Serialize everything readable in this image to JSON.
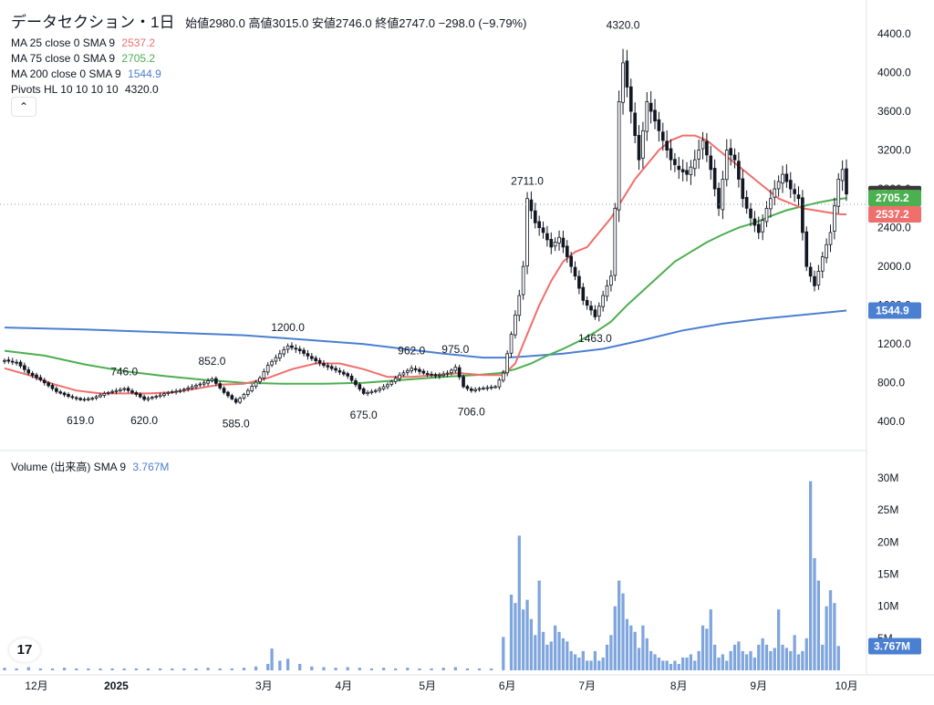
{
  "header": {
    "symbol": "データセクション・1日",
    "ohlc": "始値2980.0 高値3015.0 安値2746.0 終値2747.0 −298.0 (−9.79%)"
  },
  "legend": [
    {
      "label": "MA 25 close 0 SMA 9",
      "value": "2537.2",
      "color": "#ef6f6c"
    },
    {
      "label": "MA 75 close 0 SMA 9",
      "value": "2705.2",
      "color": "#4caf50"
    },
    {
      "label": "MA 200 close 0 SMA 9",
      "value": "1544.9",
      "color": "#4a7fd1"
    },
    {
      "label": "Pivots HL 10 10 10 10",
      "value": "4320.0",
      "color": "#131722"
    }
  ],
  "volume_legend": {
    "label": "Volume (出来高) SMA 9",
    "value": "3.767M",
    "color": "#4a7fd1"
  },
  "collapse_icon": "chevron-up-icon",
  "logo_text": "17",
  "chart_data": {
    "type": "candlestick",
    "price_axis": {
      "min": 120,
      "max": 4560,
      "ticks": [
        "400.0",
        "800.0",
        "1200.0",
        "1600.0",
        "2000.0",
        "2400.0",
        "2800.0",
        "3200.0",
        "3600.0",
        "4000.0",
        "4400.0"
      ]
    },
    "volume_axis": {
      "min": 0,
      "max": 32,
      "ticks": [
        "5M",
        "10M",
        "15M",
        "20M",
        "25M",
        "30M"
      ]
    },
    "x_ticks": [
      {
        "label": "12月",
        "day": 8
      },
      {
        "label": "2025",
        "day": 28
      },
      {
        "label": "3月",
        "day": 65
      },
      {
        "label": "4月",
        "day": 85
      },
      {
        "label": "5月",
        "day": 106
      },
      {
        "label": "6月",
        "day": 126
      },
      {
        "label": "7月",
        "day": 146
      },
      {
        "label": "8月",
        "day": 169
      },
      {
        "label": "9月",
        "day": 189
      },
      {
        "label": "10月",
        "day": 211
      }
    ],
    "price_labels": [
      {
        "text": "2747.0",
        "value": 2747,
        "bg": "#3a3a3a"
      },
      {
        "text": "2705.2",
        "value": 2705.2,
        "bg": "#4caf50"
      },
      {
        "text": "2537.2",
        "value": 2537.2,
        "bg": "#ef6f6c"
      },
      {
        "text": "1544.9",
        "value": 1544.9,
        "bg": "#4a7fd1"
      }
    ],
    "volume_label": {
      "text": "3.767M",
      "value": 3.767,
      "bg": "#4a7fd1"
    },
    "pivots": [
      {
        "text": "746.0",
        "day": 30,
        "value": 746,
        "pos": "high"
      },
      {
        "text": "852.0",
        "day": 52,
        "value": 852,
        "pos": "high"
      },
      {
        "text": "1200.0",
        "day": 71,
        "value": 1200,
        "pos": "high"
      },
      {
        "text": "962.0",
        "day": 102,
        "value": 962,
        "pos": "high"
      },
      {
        "text": "975.0",
        "day": 113,
        "value": 975,
        "pos": "high"
      },
      {
        "text": "2711.0",
        "day": 131,
        "value": 2711,
        "pos": "high"
      },
      {
        "text": "4320.0",
        "day": 155,
        "value": 4320,
        "pos": "high"
      },
      {
        "text": "619.0",
        "day": 19,
        "value": 619,
        "pos": "low"
      },
      {
        "text": "620.0",
        "day": 35,
        "value": 620,
        "pos": "low"
      },
      {
        "text": "585.0",
        "day": 58,
        "value": 585,
        "pos": "low"
      },
      {
        "text": "675.0",
        "day": 90,
        "value": 675,
        "pos": "low"
      },
      {
        "text": "706.0",
        "day": 117,
        "value": 706,
        "pos": "low"
      },
      {
        "text": "1463.0",
        "day": 148,
        "value": 1463,
        "pos": "low"
      }
    ],
    "price_points": [
      [
        0,
        1030
      ],
      [
        3,
        1010
      ],
      [
        6,
        900
      ],
      [
        9,
        830
      ],
      [
        13,
        710
      ],
      [
        16,
        660
      ],
      [
        19,
        625
      ],
      [
        22,
        640
      ],
      [
        25,
        690
      ],
      [
        28,
        720
      ],
      [
        30,
        740
      ],
      [
        33,
        680
      ],
      [
        35,
        630
      ],
      [
        38,
        660
      ],
      [
        41,
        700
      ],
      [
        44,
        720
      ],
      [
        47,
        760
      ],
      [
        50,
        800
      ],
      [
        52,
        840
      ],
      [
        55,
        700
      ],
      [
        58,
        600
      ],
      [
        61,
        720
      ],
      [
        64,
        850
      ],
      [
        66,
        980
      ],
      [
        69,
        1100
      ],
      [
        71,
        1180
      ],
      [
        74,
        1130
      ],
      [
        77,
        1050
      ],
      [
        80,
        980
      ],
      [
        83,
        930
      ],
      [
        86,
        870
      ],
      [
        88,
        780
      ],
      [
        90,
        690
      ],
      [
        93,
        720
      ],
      [
        96,
        780
      ],
      [
        99,
        880
      ],
      [
        102,
        950
      ],
      [
        105,
        900
      ],
      [
        108,
        870
      ],
      [
        111,
        900
      ],
      [
        113,
        960
      ],
      [
        115,
        760
      ],
      [
        117,
        720
      ],
      [
        119,
        740
      ],
      [
        121,
        750
      ],
      [
        123,
        760
      ],
      [
        125,
        900
      ],
      [
        127,
        1300
      ],
      [
        129,
        1700
      ],
      [
        130,
        2000
      ],
      [
        131,
        2700
      ],
      [
        133,
        2450
      ],
      [
        135,
        2350
      ],
      [
        137,
        2200
      ],
      [
        139,
        2300
      ],
      [
        141,
        2100
      ],
      [
        143,
        1900
      ],
      [
        145,
        1650
      ],
      [
        147,
        1550
      ],
      [
        148,
        1480
      ],
      [
        150,
        1700
      ],
      [
        152,
        1900
      ],
      [
        153,
        2600
      ],
      [
        154,
        3700
      ],
      [
        155,
        4100
      ],
      [
        157,
        3600
      ],
      [
        159,
        3100
      ],
      [
        161,
        3700
      ],
      [
        163,
        3500
      ],
      [
        165,
        3300
      ],
      [
        167,
        3100
      ],
      [
        169,
        3000
      ],
      [
        171,
        2950
      ],
      [
        173,
        3100
      ],
      [
        175,
        3300
      ],
      [
        177,
        3000
      ],
      [
        179,
        2600
      ],
      [
        181,
        3200
      ],
      [
        183,
        3100
      ],
      [
        185,
        2700
      ],
      [
        187,
        2500
      ],
      [
        189,
        2350
      ],
      [
        191,
        2600
      ],
      [
        193,
        2800
      ],
      [
        195,
        2950
      ],
      [
        197,
        2800
      ],
      [
        199,
        2700
      ],
      [
        201,
        2000
      ],
      [
        203,
        1800
      ],
      [
        205,
        2100
      ],
      [
        207,
        2350
      ],
      [
        209,
        2900
      ],
      [
        210,
        3000
      ],
      [
        211,
        2747
      ]
    ],
    "volumes": [
      [
        0,
        0.4
      ],
      [
        3,
        0.3
      ],
      [
        6,
        0.5
      ],
      [
        9,
        0.3
      ],
      [
        12,
        0.3
      ],
      [
        15,
        0.4
      ],
      [
        18,
        0.3
      ],
      [
        21,
        0.3
      ],
      [
        24,
        0.3
      ],
      [
        27,
        0.3
      ],
      [
        30,
        0.3
      ],
      [
        33,
        0.3
      ],
      [
        36,
        0.3
      ],
      [
        39,
        0.3
      ],
      [
        42,
        0.3
      ],
      [
        45,
        0.3
      ],
      [
        48,
        0.3
      ],
      [
        51,
        0.4
      ],
      [
        54,
        0.3
      ],
      [
        57,
        0.3
      ],
      [
        60,
        0.4
      ],
      [
        63,
        0.6
      ],
      [
        66,
        1.0
      ],
      [
        67,
        3.4
      ],
      [
        69,
        1.5
      ],
      [
        71,
        1.8
      ],
      [
        74,
        1.0
      ],
      [
        77,
        0.6
      ],
      [
        80,
        0.5
      ],
      [
        83,
        0.4
      ],
      [
        86,
        0.5
      ],
      [
        89,
        0.4
      ],
      [
        92,
        0.3
      ],
      [
        95,
        0.4
      ],
      [
        98,
        0.3
      ],
      [
        101,
        0.4
      ],
      [
        104,
        0.3
      ],
      [
        107,
        0.3
      ],
      [
        110,
        0.4
      ],
      [
        113,
        0.5
      ],
      [
        116,
        0.3
      ],
      [
        119,
        0.3
      ],
      [
        122,
        0.3
      ],
      [
        125,
        5.2
      ],
      [
        127,
        11.8
      ],
      [
        128,
        10.5
      ],
      [
        129,
        21.0
      ],
      [
        130,
        9.5
      ],
      [
        131,
        11.0
      ],
      [
        132,
        8.0
      ],
      [
        133,
        5.5
      ],
      [
        134,
        14.0
      ],
      [
        135,
        6.0
      ],
      [
        136,
        4.0
      ],
      [
        137,
        4.5
      ],
      [
        138,
        7.0
      ],
      [
        139,
        6.0
      ],
      [
        140,
        5.0
      ],
      [
        141,
        4.5
      ],
      [
        142,
        3.0
      ],
      [
        143,
        2.5
      ],
      [
        144,
        2.0
      ],
      [
        145,
        3.0
      ],
      [
        146,
        1.5
      ],
      [
        147,
        1.5
      ],
      [
        148,
        3.0
      ],
      [
        149,
        1.5
      ],
      [
        150,
        2.0
      ],
      [
        151,
        4.0
      ],
      [
        152,
        5.5
      ],
      [
        153,
        10.0
      ],
      [
        154,
        14.0
      ],
      [
        155,
        12.0
      ],
      [
        156,
        8.0
      ],
      [
        157,
        7.0
      ],
      [
        158,
        6.0
      ],
      [
        159,
        3.5
      ],
      [
        160,
        7.0
      ],
      [
        161,
        5.0
      ],
      [
        162,
        3.0
      ],
      [
        163,
        2.5
      ],
      [
        164,
        2.0
      ],
      [
        165,
        1.5
      ],
      [
        166,
        1.5
      ],
      [
        167,
        1.0
      ],
      [
        168,
        1.5
      ],
      [
        169,
        1.0
      ],
      [
        170,
        2.0
      ],
      [
        171,
        2.0
      ],
      [
        172,
        2.5
      ],
      [
        173,
        1.5
      ],
      [
        174,
        3.0
      ],
      [
        175,
        7.0
      ],
      [
        176,
        6.5
      ],
      [
        177,
        9.5
      ],
      [
        178,
        4.0
      ],
      [
        179,
        2.0
      ],
      [
        180,
        2.5
      ],
      [
        181,
        1.5
      ],
      [
        182,
        3.0
      ],
      [
        183,
        4.0
      ],
      [
        184,
        4.5
      ],
      [
        185,
        3.0
      ],
      [
        186,
        2.5
      ],
      [
        187,
        3.0
      ],
      [
        188,
        2.0
      ],
      [
        189,
        4.0
      ],
      [
        190,
        5.0
      ],
      [
        191,
        4.0
      ],
      [
        192,
        3.0
      ],
      [
        193,
        3.5
      ],
      [
        194,
        9.5
      ],
      [
        195,
        4.0
      ],
      [
        196,
        3.5
      ],
      [
        197,
        3.0
      ],
      [
        198,
        5.5
      ],
      [
        199,
        2.5
      ],
      [
        200,
        3.0
      ],
      [
        201,
        5.0
      ],
      [
        202,
        29.5
      ],
      [
        203,
        17.5
      ],
      [
        204,
        14.0
      ],
      [
        205,
        4.0
      ],
      [
        206,
        10.0
      ],
      [
        207,
        12.5
      ],
      [
        208,
        10.5
      ],
      [
        209,
        3.8
      ]
    ],
    "ma25": [
      [
        0,
        950
      ],
      [
        6,
        880
      ],
      [
        12,
        790
      ],
      [
        18,
        720
      ],
      [
        24,
        690
      ],
      [
        30,
        690
      ],
      [
        36,
        690
      ],
      [
        42,
        700
      ],
      [
        48,
        740
      ],
      [
        54,
        780
      ],
      [
        60,
        790
      ],
      [
        66,
        850
      ],
      [
        72,
        940
      ],
      [
        78,
        1000
      ],
      [
        84,
        1000
      ],
      [
        90,
        940
      ],
      [
        96,
        860
      ],
      [
        102,
        860
      ],
      [
        108,
        880
      ],
      [
        114,
        900
      ],
      [
        120,
        880
      ],
      [
        125,
        880
      ],
      [
        128,
        1000
      ],
      [
        131,
        1300
      ],
      [
        134,
        1600
      ],
      [
        137,
        1850
      ],
      [
        140,
        2050
      ],
      [
        143,
        2150
      ],
      [
        146,
        2200
      ],
      [
        149,
        2350
      ],
      [
        152,
        2500
      ],
      [
        155,
        2700
      ],
      [
        158,
        2900
      ],
      [
        161,
        3050
      ],
      [
        164,
        3200
      ],
      [
        167,
        3300
      ],
      [
        170,
        3350
      ],
      [
        173,
        3350
      ],
      [
        176,
        3300
      ],
      [
        179,
        3200
      ],
      [
        182,
        3100
      ],
      [
        185,
        3000
      ],
      [
        188,
        2900
      ],
      [
        191,
        2800
      ],
      [
        194,
        2700
      ],
      [
        197,
        2650
      ],
      [
        200,
        2600
      ],
      [
        203,
        2580
      ],
      [
        206,
        2560
      ],
      [
        209,
        2540
      ],
      [
        211,
        2537
      ]
    ],
    "ma75": [
      [
        0,
        1130
      ],
      [
        10,
        1080
      ],
      [
        20,
        990
      ],
      [
        30,
        920
      ],
      [
        40,
        870
      ],
      [
        50,
        830
      ],
      [
        60,
        800
      ],
      [
        70,
        790
      ],
      [
        80,
        790
      ],
      [
        90,
        800
      ],
      [
        100,
        830
      ],
      [
        110,
        860
      ],
      [
        118,
        880
      ],
      [
        124,
        900
      ],
      [
        128,
        940
      ],
      [
        132,
        1000
      ],
      [
        136,
        1080
      ],
      [
        140,
        1150
      ],
      [
        144,
        1230
      ],
      [
        148,
        1320
      ],
      [
        152,
        1430
      ],
      [
        156,
        1600
      ],
      [
        160,
        1750
      ],
      [
        164,
        1900
      ],
      [
        168,
        2050
      ],
      [
        172,
        2150
      ],
      [
        176,
        2250
      ],
      [
        180,
        2330
      ],
      [
        184,
        2400
      ],
      [
        188,
        2450
      ],
      [
        192,
        2520
      ],
      [
        196,
        2580
      ],
      [
        200,
        2620
      ],
      [
        204,
        2660
      ],
      [
        208,
        2690
      ],
      [
        211,
        2705
      ]
    ],
    "ma200": [
      [
        0,
        1370
      ],
      [
        20,
        1350
      ],
      [
        40,
        1320
      ],
      [
        60,
        1290
      ],
      [
        70,
        1260
      ],
      [
        80,
        1230
      ],
      [
        90,
        1200
      ],
      [
        100,
        1150
      ],
      [
        110,
        1100
      ],
      [
        120,
        1060
      ],
      [
        126,
        1060
      ],
      [
        130,
        1070
      ],
      [
        140,
        1100
      ],
      [
        150,
        1150
      ],
      [
        160,
        1240
      ],
      [
        170,
        1340
      ],
      [
        180,
        1410
      ],
      [
        190,
        1460
      ],
      [
        200,
        1500
      ],
      [
        211,
        1545
      ]
    ]
  }
}
